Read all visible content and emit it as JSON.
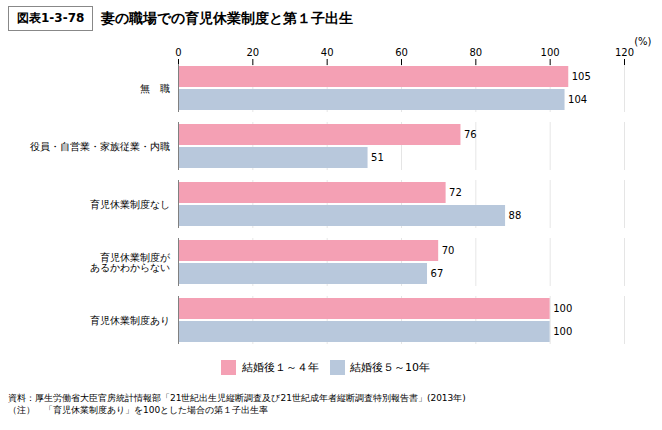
{
  "chart_data": {
    "type": "bar",
    "orientation": "horizontal",
    "subtitle": "図表1-3-78",
    "title": "妻の職場での育児休業制度と第１子出生",
    "xlabel": "(%)",
    "categories": [
      "無　職",
      "役員・自営業・家族従業・内職",
      "育児休業制度なし",
      "育児休業制度が\nあるかわからない",
      "育児休業制度あり"
    ],
    "series": [
      {
        "name": "結婚後１～４年",
        "color": "#F4A0B4",
        "values": [
          105,
          76,
          72,
          70,
          100
        ]
      },
      {
        "name": "結婚後５～10年",
        "color": "#B8C8DC",
        "values": [
          104,
          51,
          88,
          67,
          100
        ]
      }
    ],
    "xlim": [
      0,
      120
    ],
    "xticks": [
      0,
      20,
      40,
      60,
      80,
      100,
      120
    ],
    "grid": true,
    "data_labels": true,
    "legend": "bottom",
    "notes": [
      "資料：厚生労働省大臣官房統計情報部「21世紀出生児縦断調査及び21世紀成年者縦断調査特別報告書」(2013年)",
      "（注）　「育児休業制度あり」を100とした場合の第１子出生率"
    ]
  }
}
